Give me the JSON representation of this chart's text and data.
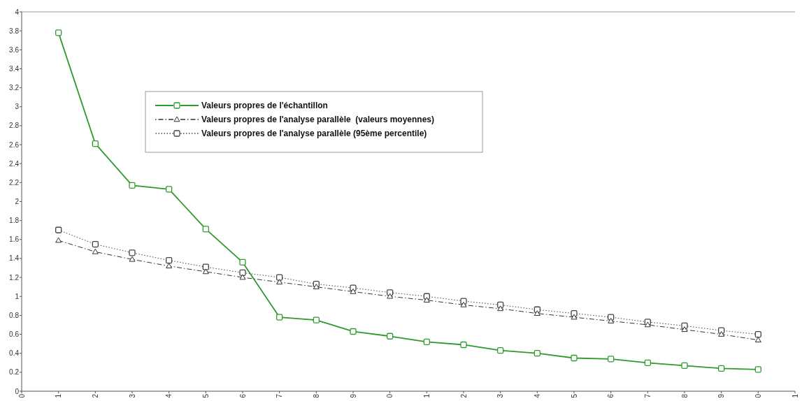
{
  "chart_data": {
    "type": "line",
    "categories": [
      "0",
      "1",
      "2",
      "3",
      "4",
      "5",
      "6",
      "7",
      "8",
      "9",
      "0",
      "1",
      "2",
      "3",
      "4",
      "5",
      "6",
      "7",
      "8",
      "9",
      "0",
      "1"
    ],
    "ylim": [
      0,
      4
    ],
    "yticks": [
      0,
      0.2,
      0.4,
      0.6,
      0.8,
      1,
      1.2,
      1.4,
      1.6,
      1.8,
      2,
      2.2,
      2.4,
      2.6,
      2.8,
      3,
      3.2,
      3.4,
      3.6,
      3.8,
      4
    ],
    "grid": false,
    "legend": "top",
    "series": [
      {
        "name": "Valeurs propres de l'échantillon",
        "color": "#2e9a2e",
        "marker": "square",
        "line_style": "solid",
        "values": [
          null,
          3.78,
          2.61,
          2.17,
          2.13,
          1.71,
          1.36,
          0.78,
          0.75,
          0.63,
          0.58,
          0.52,
          0.49,
          0.43,
          0.4,
          0.35,
          0.34,
          0.3,
          0.27,
          0.24,
          0.23,
          null
        ]
      },
      {
        "name": "Valeurs propres de l'analyse parallèle  (valeurs moyennes)",
        "color": "#333333",
        "marker": "triangle",
        "line_style": "dashdot",
        "values": [
          null,
          1.59,
          1.47,
          1.39,
          1.32,
          1.26,
          1.2,
          1.15,
          1.1,
          1.05,
          1.0,
          0.96,
          0.91,
          0.87,
          0.82,
          0.78,
          0.74,
          0.7,
          0.65,
          0.6,
          0.54,
          null
        ]
      },
      {
        "name": "Valeurs propres de l'analyse parallèle (95ème percentile)",
        "color": "#444444",
        "marker": "square",
        "line_style": "dotted",
        "values": [
          null,
          1.7,
          1.55,
          1.46,
          1.38,
          1.31,
          1.25,
          1.2,
          1.13,
          1.09,
          1.04,
          1.0,
          0.95,
          0.91,
          0.86,
          0.82,
          0.78,
          0.73,
          0.69,
          0.64,
          0.6,
          null
        ]
      }
    ]
  }
}
